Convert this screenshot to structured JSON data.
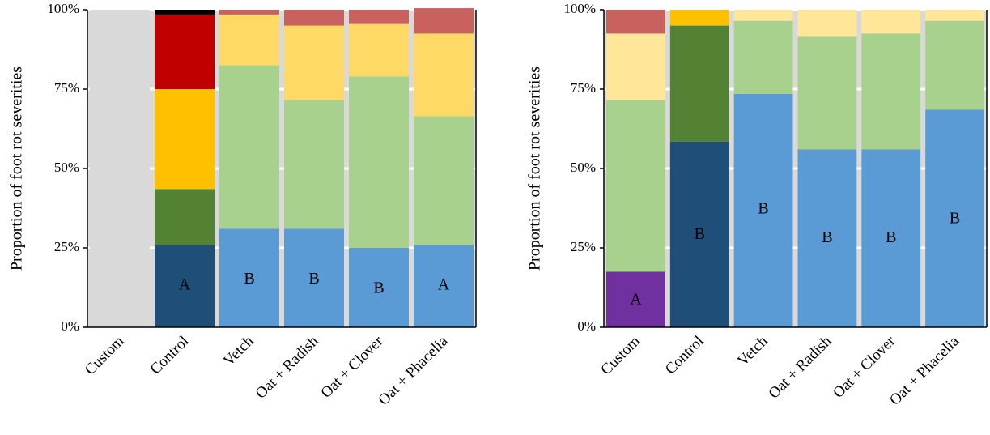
{
  "chart_data": [
    {
      "type": "bar",
      "stacked": true,
      "ylabel": "Proportion of foot rot severities",
      "ylim": [
        0,
        100
      ],
      "yticks": [
        "0%",
        "25%",
        "50%",
        "75%",
        "100%"
      ],
      "ytick_values": [
        0,
        25,
        50,
        75,
        100
      ],
      "categories": [
        "Custom",
        "Control",
        "Vetch",
        "Oat + Radish",
        "Oat + Clover",
        "Oat + Phacelia"
      ],
      "grid": true,
      "legend": "none",
      "series": [
        {
          "color": "#1F4E79",
          "values": [
            0,
            26,
            0,
            0,
            0,
            0
          ]
        },
        {
          "color": "#5B9BD5",
          "values": [
            0,
            0,
            31,
            31,
            25,
            26
          ]
        },
        {
          "color": "#548235",
          "values": [
            0,
            17.5,
            0,
            0,
            0,
            0
          ]
        },
        {
          "color": "#A9D18E",
          "values": [
            0,
            0,
            51.5,
            40.5,
            54,
            40.5
          ]
        },
        {
          "color": "#FFC000",
          "values": [
            0,
            31.5,
            0,
            0,
            0,
            0
          ]
        },
        {
          "color": "#FFD966",
          "values": [
            0,
            0,
            16,
            23.5,
            16.5,
            26
          ]
        },
        {
          "color": "#C00000",
          "values": [
            0,
            23.5,
            0,
            0,
            0,
            0
          ]
        },
        {
          "color": "#C9625F",
          "values": [
            0,
            0,
            1.5,
            5,
            4.5,
            8
          ]
        },
        {
          "color": "#000000",
          "values": [
            0,
            1.5,
            0,
            0,
            0,
            0
          ]
        },
        {
          "color": "#D9D9D9",
          "values": [
            100,
            0,
            0,
            0,
            0,
            0
          ]
        }
      ],
      "letters": [
        "",
        "A",
        "B",
        "B",
        "B",
        "A"
      ],
      "letter_y": [
        null,
        13,
        15,
        15,
        12,
        13
      ]
    },
    {
      "type": "bar",
      "stacked": true,
      "ylabel": "Proportion of foot rot severities",
      "ylim": [
        0,
        100
      ],
      "yticks": [
        "0%",
        "25%",
        "50%",
        "75%",
        "100%"
      ],
      "ytick_values": [
        0,
        25,
        50,
        75,
        100
      ],
      "categories": [
        "Custom",
        "Control",
        "Vetch",
        "Oat + Radish",
        "Oat + Clover",
        "Oat + Phacelia"
      ],
      "grid": true,
      "legend": "none",
      "series": [
        {
          "color": "#7030A0",
          "values": [
            17.5,
            0,
            0,
            0,
            0,
            0
          ]
        },
        {
          "color": "#1F4E79",
          "values": [
            0,
            58.5,
            0,
            0,
            0,
            0
          ]
        },
        {
          "color": "#5B9BD5",
          "values": [
            0,
            0,
            73.5,
            56,
            56,
            68.5
          ]
        },
        {
          "color": "#548235",
          "values": [
            0,
            36.5,
            0,
            0,
            0,
            0
          ]
        },
        {
          "color": "#A9D18E",
          "values": [
            54,
            0,
            23,
            35.5,
            36.5,
            28
          ]
        },
        {
          "color": "#FFC000",
          "values": [
            0,
            5,
            0,
            0,
            0,
            0
          ]
        },
        {
          "color": "#FFE699",
          "values": [
            21,
            0,
            3.5,
            8.5,
            7.5,
            3.5
          ]
        },
        {
          "color": "#C9625F",
          "values": [
            7.5,
            0,
            0,
            0,
            0,
            0
          ]
        }
      ],
      "letters": [
        "A",
        "B",
        "B",
        "B",
        "B",
        "B"
      ],
      "letter_y": [
        8.5,
        29,
        37,
        28,
        28,
        34
      ]
    }
  ]
}
